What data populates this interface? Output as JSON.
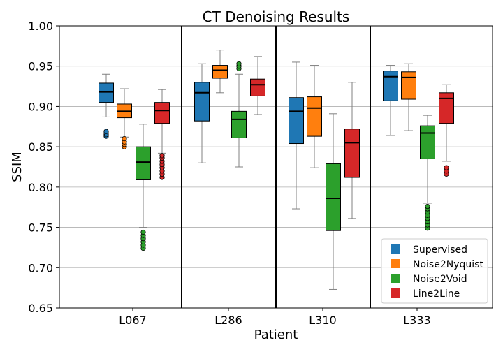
{
  "chart_data": {
    "type": "box",
    "title": "CT Denoising Results",
    "xlabel": "Patient",
    "ylabel": "SSIM",
    "ylim": [
      0.65,
      1.0
    ],
    "yticks": [
      "0.65",
      "0.70",
      "0.75",
      "0.80",
      "0.85",
      "0.90",
      "0.95",
      "1.00"
    ],
    "categories": [
      "L067",
      "L286",
      "L310",
      "L333"
    ],
    "grid": "horizontal",
    "legend_position": "lower-right",
    "series": [
      {
        "name": "Supervised",
        "color": "#1f77b4",
        "boxes": [
          {
            "whislo": 0.887,
            "q1": 0.905,
            "med": 0.918,
            "q3": 0.929,
            "whishi": 0.94,
            "fliers": [
              0.863,
              0.865,
              0.867,
              0.869
            ]
          },
          {
            "whislo": 0.83,
            "q1": 0.882,
            "med": 0.917,
            "q3": 0.93,
            "whishi": 0.953,
            "fliers": []
          },
          {
            "whislo": 0.773,
            "q1": 0.854,
            "med": 0.894,
            "q3": 0.911,
            "whishi": 0.955,
            "fliers": []
          },
          {
            "whislo": 0.864,
            "q1": 0.907,
            "med": 0.937,
            "q3": 0.944,
            "whishi": 0.951,
            "fliers": []
          }
        ]
      },
      {
        "name": "Noise2Nyquist",
        "color": "#ff7f0e",
        "boxes": [
          {
            "whislo": 0.862,
            "q1": 0.886,
            "med": 0.894,
            "q3": 0.903,
            "whishi": 0.922,
            "fliers": [
              0.85,
              0.853,
              0.856,
              0.86
            ]
          },
          {
            "whislo": 0.917,
            "q1": 0.935,
            "med": 0.945,
            "q3": 0.951,
            "whishi": 0.97,
            "fliers": []
          },
          {
            "whislo": 0.824,
            "q1": 0.863,
            "med": 0.898,
            "q3": 0.912,
            "whishi": 0.951,
            "fliers": []
          },
          {
            "whislo": 0.87,
            "q1": 0.909,
            "med": 0.936,
            "q3": 0.943,
            "whishi": 0.953,
            "fliers": []
          }
        ]
      },
      {
        "name": "Noise2Void",
        "color": "#2ca02c",
        "boxes": [
          {
            "whislo": 0.75,
            "q1": 0.809,
            "med": 0.831,
            "q3": 0.85,
            "whishi": 0.878,
            "fliers": [
              0.724,
              0.728,
              0.732,
              0.736,
              0.74,
              0.744
            ]
          },
          {
            "whislo": 0.825,
            "q1": 0.861,
            "med": 0.884,
            "q3": 0.894,
            "whishi": 0.94,
            "fliers": [
              0.947,
              0.95,
              0.953
            ]
          },
          {
            "whislo": 0.673,
            "q1": 0.746,
            "med": 0.786,
            "q3": 0.829,
            "whishi": 0.891,
            "fliers": []
          },
          {
            "whislo": 0.78,
            "q1": 0.835,
            "med": 0.867,
            "q3": 0.876,
            "whishi": 0.889,
            "fliers": [
              0.749,
              0.753,
              0.757,
              0.761,
              0.765,
              0.769,
              0.773,
              0.776
            ]
          }
        ]
      },
      {
        "name": "Line2Line",
        "color": "#d62728",
        "boxes": [
          {
            "whislo": 0.842,
            "q1": 0.879,
            "med": 0.895,
            "q3": 0.905,
            "whishi": 0.921,
            "fliers": [
              0.812,
              0.816,
              0.82,
              0.824,
              0.828,
              0.832,
              0.836,
              0.839
            ]
          },
          {
            "whislo": 0.89,
            "q1": 0.913,
            "med": 0.927,
            "q3": 0.934,
            "whishi": 0.962,
            "fliers": []
          },
          {
            "whislo": 0.761,
            "q1": 0.812,
            "med": 0.855,
            "q3": 0.872,
            "whishi": 0.93,
            "fliers": []
          },
          {
            "whislo": 0.832,
            "q1": 0.879,
            "med": 0.91,
            "q3": 0.917,
            "whishi": 0.927,
            "fliers": [
              0.816,
              0.82,
              0.824
            ]
          }
        ]
      }
    ]
  }
}
